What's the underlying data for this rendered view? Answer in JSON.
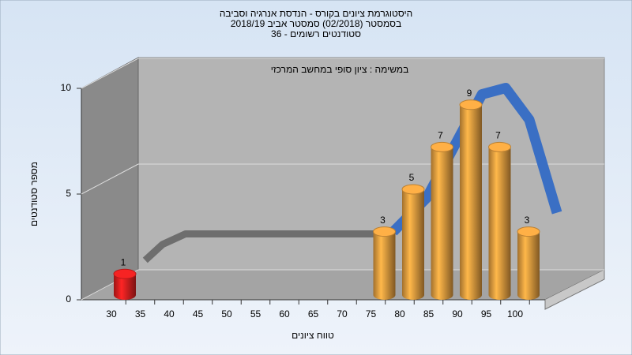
{
  "chart_data": {
    "type": "bar",
    "title": [
      "היסטוגרמת ציונים בקורס - הנדסת אנרגיה וסביבה",
      "בסמסטר  (02/2018)  סמסטר אביב 2018/19",
      "סטודנטים רשומים - 36"
    ],
    "subtitle": "במשימה : ציון סופי במחשב המרכזי",
    "x_label": "טווח ציונים",
    "y_label": "מספר סטודנטים",
    "categories": [
      "30",
      "35",
      "40",
      "45",
      "50",
      "55",
      "60",
      "65",
      "70",
      "75",
      "80",
      "85",
      "90",
      "95",
      "100"
    ],
    "values": [
      1,
      0,
      0,
      0,
      0,
      0,
      0,
      0,
      0,
      3,
      5,
      7,
      9,
      7,
      3
    ],
    "colors": [
      "#e02020",
      "#e8a040",
      "#e8a040",
      "#e8a040",
      "#e8a040",
      "#e8a040",
      "#e8a040",
      "#e8a040",
      "#e8a040",
      "#e8a040",
      "#e8a040",
      "#e8a040",
      "#e8a040",
      "#e8a040",
      "#e8a040"
    ],
    "ylim": [
      0,
      10
    ],
    "yticks": [
      0,
      5,
      10
    ],
    "grid": true,
    "curves": [
      {
        "color": "#6e6e6e",
        "x": [
          26,
          29,
          33,
          66,
          69
        ],
        "values": [
          0.45,
          1.2,
          1.7,
          1.7,
          1.8
        ]
      },
      {
        "color": "#3a6fc4",
        "x": [
          69,
          74.8,
          84.4,
          88.5,
          92.6,
          97.4
        ],
        "values": [
          1.8,
          3.4,
          8.3,
          8.6,
          7.1,
          2.7
        ]
      }
    ]
  }
}
